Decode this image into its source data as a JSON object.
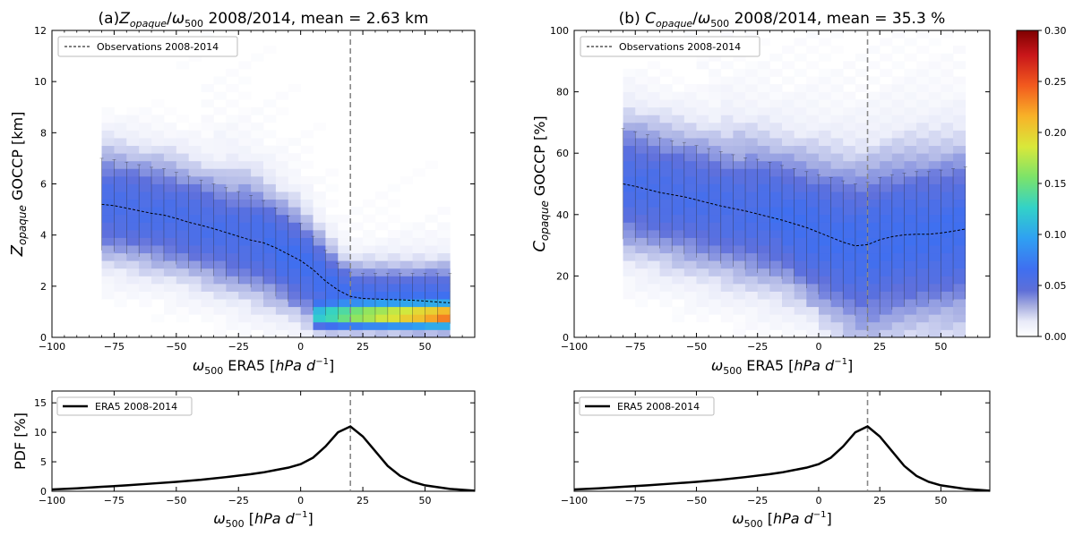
{
  "chart_data": [
    {
      "panel": "a",
      "type": "heatmap",
      "title_prefix": "(a)",
      "title_var_main": "Z",
      "title_var_sub": "opaque",
      "title_sep": "/",
      "title_omega_main": "ω",
      "title_omega_sub": "500",
      "title_rest": " 2008/2014, mean = 2.63 km",
      "ylabel_main": "Z",
      "ylabel_sub": "opaque",
      "ylabel_rest": " GOCCP [km]",
      "xlabel_main": "ω",
      "xlabel_sub": "500",
      "xlabel_rest": " ERA5 [",
      "xlabel_units": "hPa d",
      "xlabel_exp": "−1",
      "xlabel_end": "]",
      "xlim": [
        -100,
        70
      ],
      "ylim": [
        0,
        12
      ],
      "xticks": [
        -100,
        -75,
        -50,
        -25,
        0,
        25,
        50
      ],
      "xtick_labels": [
        "−100",
        "−75",
        "−50",
        "−25",
        "0",
        "25",
        "50"
      ],
      "yticks": [
        0,
        2,
        4,
        6,
        8,
        10,
        12
      ],
      "ytick_labels": [
        "0",
        "2",
        "4",
        "6",
        "8",
        "10",
        "12"
      ],
      "vline_x": 20,
      "legend_label": "Observations 2008-2014",
      "legend_loc": "upper left",
      "obs_mean_x": [
        -80,
        -75,
        -70,
        -65,
        -60,
        -55,
        -50,
        -45,
        -40,
        -35,
        -30,
        -25,
        -20,
        -15,
        -10,
        -5,
        0,
        5,
        10,
        15,
        20,
        25,
        30,
        35,
        40,
        45,
        50,
        55,
        60
      ],
      "obs_mean_y": [
        5.2,
        5.15,
        5.05,
        4.95,
        4.85,
        4.78,
        4.65,
        4.5,
        4.38,
        4.25,
        4.1,
        3.95,
        3.8,
        3.7,
        3.5,
        3.25,
        3.0,
        2.65,
        2.2,
        1.85,
        1.6,
        1.52,
        1.5,
        1.48,
        1.47,
        1.45,
        1.42,
        1.38,
        1.35
      ],
      "obs_spread_low": [
        3.4,
        3.35,
        3.25,
        3.15,
        3.05,
        2.95,
        2.85,
        2.7,
        2.55,
        2.4,
        2.25,
        2.1,
        1.95,
        1.8,
        1.6,
        1.4,
        1.25,
        1.05,
        0.85,
        0.7,
        0.62,
        0.6,
        0.58,
        0.58,
        0.57,
        0.56,
        0.55,
        0.54,
        0.53
      ],
      "obs_spread_high": [
        7.0,
        6.95,
        6.85,
        6.75,
        6.65,
        6.6,
        6.45,
        6.3,
        6.15,
        6.0,
        5.85,
        5.7,
        5.55,
        5.35,
        5.05,
        4.75,
        4.45,
        3.95,
        3.4,
        2.9,
        2.55,
        2.5,
        2.5,
        2.5,
        2.5,
        2.5,
        2.5,
        2.5,
        2.5
      ],
      "low_cloud_peak": {
        "y_center": 0.85,
        "x_from": 5,
        "x_to": 60
      }
    },
    {
      "panel": "b",
      "type": "heatmap",
      "title_prefix": "(b) ",
      "title_var_main": "C",
      "title_var_sub": "opaque",
      "title_sep": "/",
      "title_omega_main": "ω",
      "title_omega_sub": "500",
      "title_rest": " 2008/2014, mean = 35.3 %",
      "ylabel_main": "C",
      "ylabel_sub": "opaque",
      "ylabel_rest": " GOCCP [%]",
      "xlabel_main": "ω",
      "xlabel_sub": "500",
      "xlabel_rest": " ERA5 [",
      "xlabel_units": "hPa d",
      "xlabel_exp": "−1",
      "xlabel_end": "]",
      "xlim": [
        -100,
        70
      ],
      "ylim": [
        0,
        100
      ],
      "xticks": [
        -100,
        -75,
        -50,
        -25,
        0,
        25,
        50
      ],
      "xtick_labels": [
        "−100",
        "−75",
        "−50",
        "−25",
        "0",
        "25",
        "50"
      ],
      "yticks": [
        0,
        20,
        40,
        60,
        80,
        100
      ],
      "ytick_labels": [
        "0",
        "20",
        "40",
        "60",
        "80",
        "100"
      ],
      "vline_x": 20,
      "legend_label": "Observations 2008-2014",
      "legend_loc": "upper left",
      "obs_mean_x": [
        -80,
        -75,
        -70,
        -65,
        -60,
        -55,
        -50,
        -45,
        -40,
        -35,
        -30,
        -25,
        -20,
        -15,
        -10,
        -5,
        0,
        5,
        10,
        15,
        20,
        25,
        30,
        35,
        40,
        45,
        50,
        55,
        60
      ],
      "obs_mean_y": [
        50.0,
        49.2,
        48.2,
        47.2,
        46.5,
        45.8,
        44.8,
        43.8,
        42.8,
        42.0,
        41.2,
        40.2,
        39.2,
        38.2,
        37.0,
        35.8,
        34.2,
        32.6,
        31.0,
        29.8,
        30.2,
        31.8,
        32.8,
        33.4,
        33.6,
        33.6,
        34.0,
        34.6,
        35.3
      ],
      "obs_spread_low": [
        32.0,
        31.0,
        30.0,
        29.0,
        28.0,
        27.0,
        26.0,
        25.0,
        24.0,
        23.0,
        22.0,
        21.0,
        20.0,
        19.0,
        17.5,
        16.0,
        14.0,
        12.0,
        9.5,
        7.0,
        6.0,
        7.5,
        9.0,
        10.0,
        10.5,
        11.0,
        11.5,
        12.0,
        12.5
      ],
      "obs_spread_high": [
        68.0,
        67.0,
        66.0,
        65.0,
        64.0,
        63.5,
        62.5,
        61.5,
        60.5,
        59.5,
        58.5,
        58.0,
        57.0,
        56.0,
        55.0,
        54.0,
        53.0,
        52.0,
        51.0,
        50.0,
        50.5,
        52.0,
        53.0,
        53.5,
        54.0,
        54.0,
        54.5,
        55.0,
        55.5
      ]
    },
    {
      "panel": "c",
      "type": "line",
      "ylabel": "PDF [%]",
      "xlabel_main": "ω",
      "xlabel_sub": "500",
      "xlabel_rest": " [",
      "xlabel_units": "hPa d",
      "xlabel_exp": "−1",
      "xlabel_end": "]",
      "xlim": [
        -100,
        70
      ],
      "ylim": [
        0,
        17
      ],
      "xticks": [
        -100,
        -75,
        -50,
        -25,
        0,
        25,
        50
      ],
      "xtick_labels": [
        "−100",
        "−75",
        "−50",
        "−25",
        "0",
        "25",
        "50"
      ],
      "yticks": [
        0,
        5,
        10,
        15
      ],
      "ytick_labels": [
        "0",
        "5",
        "10",
        "15"
      ],
      "vline_x": 20,
      "legend_label": "ERA5 2008-2014",
      "legend_loc": "upper left",
      "series": [
        {
          "name": "ERA5 2008-2014",
          "x": [
            -100,
            -90,
            -80,
            -70,
            -60,
            -50,
            -40,
            -30,
            -20,
            -15,
            -10,
            -5,
            0,
            5,
            10,
            15,
            20,
            25,
            30,
            35,
            40,
            45,
            50,
            55,
            60,
            65,
            70
          ],
          "y": [
            0.3,
            0.5,
            0.75,
            1.0,
            1.3,
            1.6,
            1.95,
            2.4,
            2.9,
            3.2,
            3.6,
            4.0,
            4.6,
            5.7,
            7.6,
            10.0,
            11.0,
            9.3,
            6.8,
            4.3,
            2.6,
            1.6,
            1.0,
            0.7,
            0.4,
            0.25,
            0.1
          ]
        }
      ]
    },
    {
      "panel": "d",
      "type": "line",
      "ylabel": "",
      "xlabel_main": "ω",
      "xlabel_sub": "500",
      "xlabel_rest": " [",
      "xlabel_units": "hPa d",
      "xlabel_exp": "−1",
      "xlabel_end": "]",
      "xlim": [
        -100,
        70
      ],
      "ylim": [
        0,
        17
      ],
      "xticks": [
        -100,
        -75,
        -50,
        -25,
        0,
        25,
        50
      ],
      "xtick_labels": [
        "−100",
        "−75",
        "−50",
        "−25",
        "0",
        "25",
        "50"
      ],
      "yticks": [
        0,
        5,
        10,
        15
      ],
      "ytick_labels": [
        "",
        "",
        "",
        ""
      ],
      "vline_x": 20,
      "legend_label": "ERA5 2008-2014",
      "legend_loc": "upper left",
      "series": [
        {
          "name": "ERA5 2008-2014",
          "x": [
            -100,
            -90,
            -80,
            -70,
            -60,
            -50,
            -40,
            -30,
            -20,
            -15,
            -10,
            -5,
            0,
            5,
            10,
            15,
            20,
            25,
            30,
            35,
            40,
            45,
            50,
            55,
            60,
            65,
            70
          ],
          "y": [
            0.3,
            0.5,
            0.75,
            1.0,
            1.3,
            1.6,
            1.95,
            2.4,
            2.9,
            3.2,
            3.6,
            4.0,
            4.6,
            5.7,
            7.6,
            10.0,
            11.0,
            9.3,
            6.8,
            4.3,
            2.6,
            1.6,
            1.0,
            0.7,
            0.4,
            0.25,
            0.1
          ]
        }
      ]
    },
    {
      "panel": "colorbar",
      "type": "colorbar",
      "colormap": "white-blue-jet",
      "range": [
        0,
        0.3
      ],
      "ticks": [
        0.0,
        0.05,
        0.1,
        0.15,
        0.2,
        0.25,
        0.3
      ],
      "tick_labels": [
        "0.00",
        "0.05",
        "0.10",
        "0.15",
        "0.20",
        "0.25",
        "0.30"
      ]
    }
  ]
}
